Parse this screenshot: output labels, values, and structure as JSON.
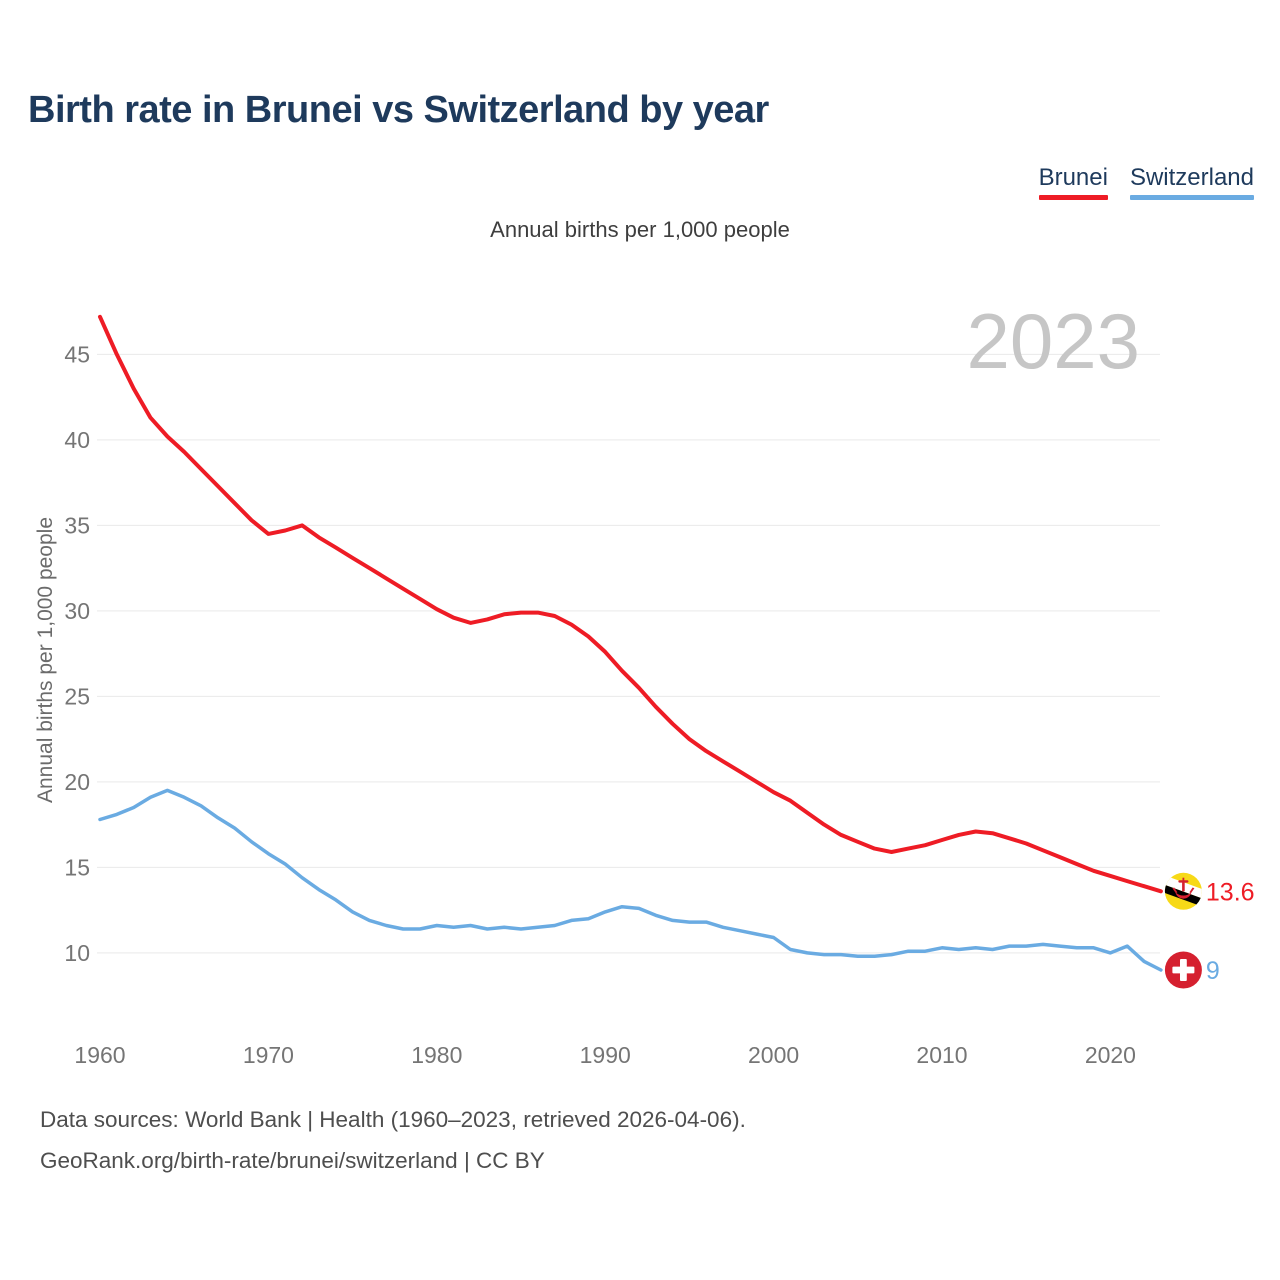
{
  "page": {
    "title": "Birth rate in Brunei vs Switzerland by year",
    "subtitle": "Annual births per 1,000 people",
    "footer_line1": "Data sources: World Bank | Health (1960–2023, retrieved 2026-04-06).",
    "footer_line2": "GeoRank.org/birth-rate/brunei/switzerland | CC BY"
  },
  "legend": {
    "items": [
      {
        "label": "Brunei",
        "color": "#ee1c25"
      },
      {
        "label": "Switzerland",
        "color": "#6aabe2"
      }
    ]
  },
  "chart_data": {
    "type": "line",
    "title": "Birth rate in Brunei vs Switzerland by year",
    "ylabel": "Annual births per 1,000 people",
    "watermark": "2023",
    "grid": "horizontal",
    "legend_position": "top-right",
    "xlim": [
      1960,
      2023
    ],
    "ylim": [
      8,
      48
    ],
    "x_ticks": [
      1960,
      1970,
      1980,
      1990,
      2000,
      2010,
      2020
    ],
    "y_ticks": [
      10,
      15,
      20,
      25,
      30,
      35,
      40,
      45
    ],
    "x": [
      1960,
      1961,
      1962,
      1963,
      1964,
      1965,
      1966,
      1967,
      1968,
      1969,
      1970,
      1971,
      1972,
      1973,
      1974,
      1975,
      1976,
      1977,
      1978,
      1979,
      1980,
      1981,
      1982,
      1983,
      1984,
      1985,
      1986,
      1987,
      1988,
      1989,
      1990,
      1991,
      1992,
      1993,
      1994,
      1995,
      1996,
      1997,
      1998,
      1999,
      2000,
      2001,
      2002,
      2003,
      2004,
      2005,
      2006,
      2007,
      2008,
      2009,
      2010,
      2011,
      2012,
      2013,
      2014,
      2015,
      2016,
      2017,
      2018,
      2019,
      2020,
      2021,
      2022,
      2023
    ],
    "series": [
      {
        "name": "Brunei",
        "color": "#ee1c25",
        "icon": "brunei-flag",
        "end_label": "13.6",
        "values": [
          47.2,
          45.0,
          43.0,
          41.3,
          40.2,
          39.3,
          38.3,
          37.3,
          36.3,
          35.3,
          34.5,
          34.7,
          35.0,
          34.3,
          33.7,
          33.1,
          32.5,
          31.9,
          31.3,
          30.7,
          30.1,
          29.6,
          29.3,
          29.5,
          29.8,
          29.9,
          29.9,
          29.7,
          29.2,
          28.5,
          27.6,
          26.5,
          25.5,
          24.4,
          23.4,
          22.5,
          21.8,
          21.2,
          20.6,
          20.0,
          19.4,
          18.9,
          18.2,
          17.5,
          16.9,
          16.5,
          16.1,
          15.9,
          16.1,
          16.3,
          16.6,
          16.9,
          17.1,
          17.0,
          16.7,
          16.4,
          16.0,
          15.6,
          15.2,
          14.8,
          14.5,
          14.2,
          13.9,
          13.6
        ]
      },
      {
        "name": "Switzerland",
        "color": "#6aabe2",
        "icon": "switzerland-flag",
        "end_label": "9",
        "values": [
          17.8,
          18.1,
          18.5,
          19.1,
          19.5,
          19.1,
          18.6,
          17.9,
          17.3,
          16.5,
          15.8,
          15.2,
          14.4,
          13.7,
          13.1,
          12.4,
          11.9,
          11.6,
          11.4,
          11.4,
          11.6,
          11.5,
          11.6,
          11.4,
          11.5,
          11.4,
          11.5,
          11.6,
          11.9,
          12.0,
          12.4,
          12.7,
          12.6,
          12.2,
          11.9,
          11.8,
          11.8,
          11.5,
          11.3,
          11.1,
          10.9,
          10.2,
          10.0,
          9.9,
          9.9,
          9.8,
          9.8,
          9.9,
          10.1,
          10.1,
          10.3,
          10.2,
          10.3,
          10.2,
          10.4,
          10.4,
          10.5,
          10.4,
          10.3,
          10.3,
          10.0,
          10.4,
          9.5,
          9.0
        ]
      }
    ]
  }
}
